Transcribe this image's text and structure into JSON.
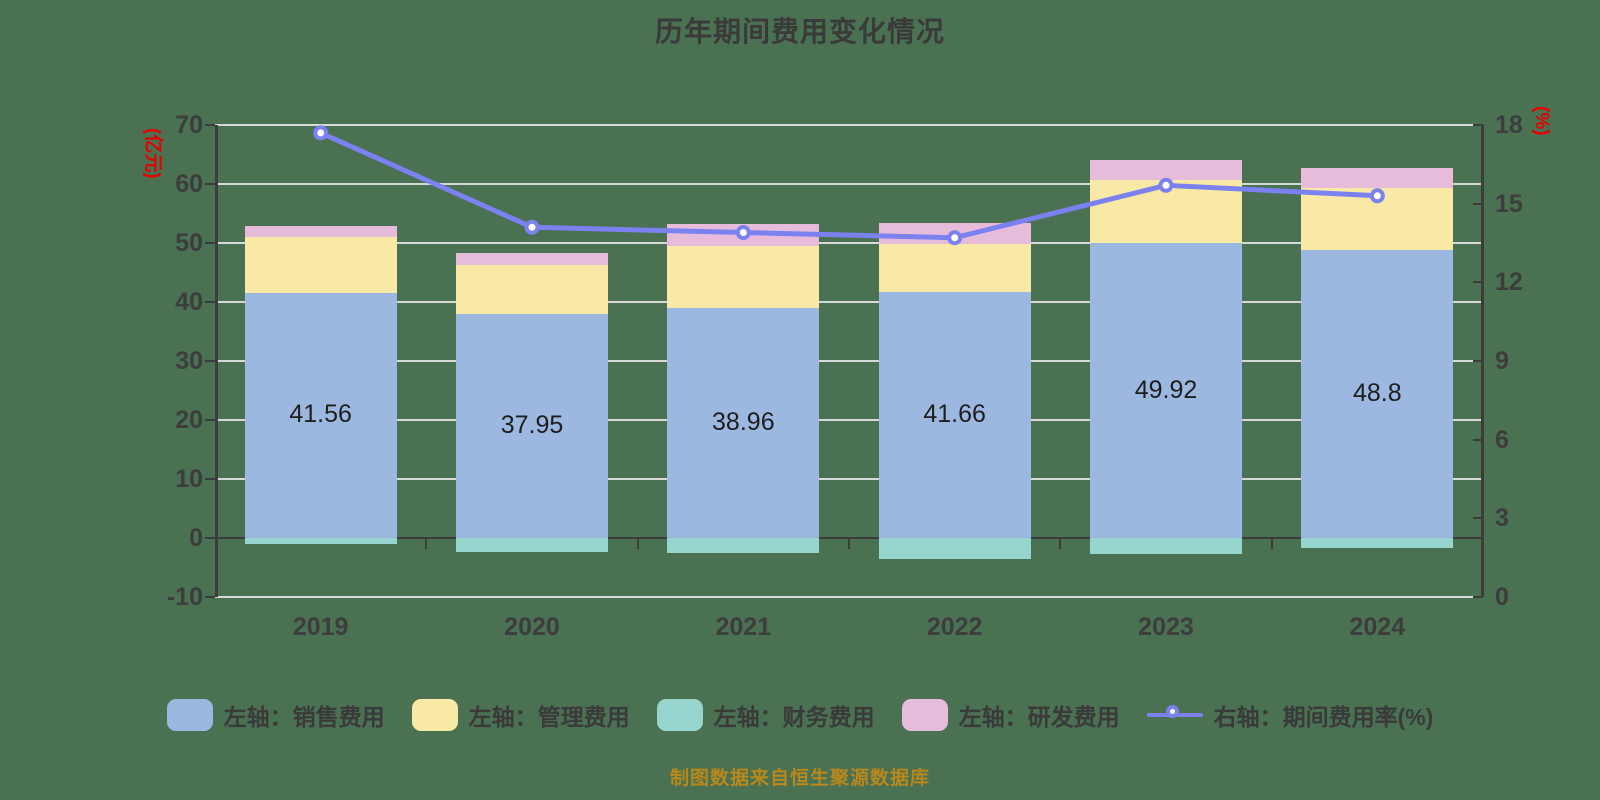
{
  "title": "历年期间费用变化情况",
  "source_note": "制图数据来自恒生聚源数据库",
  "colors": {
    "background": "#4A7152",
    "gridline": "#D8D8D8",
    "axis": "#3C3C3C",
    "text": "#3A3A3A",
    "axis_unit_red": "#E60000",
    "source_note_gold": "#B8881C",
    "marker_fill": "#FFFFFF"
  },
  "chart_data": {
    "type": "bar",
    "stacked": true,
    "title": "历年期间费用变化情况",
    "categories": [
      "2019",
      "2020",
      "2021",
      "2022",
      "2023",
      "2024"
    ],
    "series": [
      {
        "name": "左轴：销售费用",
        "type": "bar",
        "axis": "left",
        "color": "#9DB8E0",
        "values": [
          41.56,
          37.95,
          38.96,
          41.66,
          49.92,
          48.8
        ],
        "data_labels": [
          "41.56",
          "37.95",
          "38.96",
          "41.66",
          "49.92",
          "48.8"
        ]
      },
      {
        "name": "左轴：管理费用",
        "type": "bar",
        "axis": "left",
        "color": "#F8E9A6",
        "values": [
          9.5,
          8.4,
          10.6,
          8.2,
          10.7,
          10.6
        ]
      },
      {
        "name": "左轴：财务费用",
        "type": "bar",
        "axis": "left",
        "color": "#96D6CE",
        "values": [
          -1.0,
          -2.4,
          -2.5,
          -3.5,
          -2.7,
          -1.7
        ]
      },
      {
        "name": "左轴：研发费用",
        "type": "bar",
        "axis": "left",
        "color": "#E6BCDA",
        "values": [
          1.9,
          2.0,
          3.7,
          3.6,
          3.5,
          3.3
        ]
      },
      {
        "name": "右轴：期间费用率(%)",
        "type": "line",
        "axis": "right",
        "color": "#7C81F0",
        "values": [
          17.7,
          14.1,
          13.9,
          13.7,
          15.7,
          15.3
        ]
      }
    ],
    "left_axis": {
      "label": "(亿元)",
      "min": -10,
      "max": 70,
      "step": 10,
      "ticks": [
        "70",
        "60",
        "50",
        "40",
        "30",
        "20",
        "10",
        "0",
        "-10"
      ]
    },
    "right_axis": {
      "label": "(%)",
      "min": 0,
      "max": 18,
      "step": 3,
      "ticks": [
        "18",
        "15",
        "12",
        "9",
        "6",
        "3",
        "0"
      ]
    },
    "legend_position": "bottom",
    "grid": true
  }
}
